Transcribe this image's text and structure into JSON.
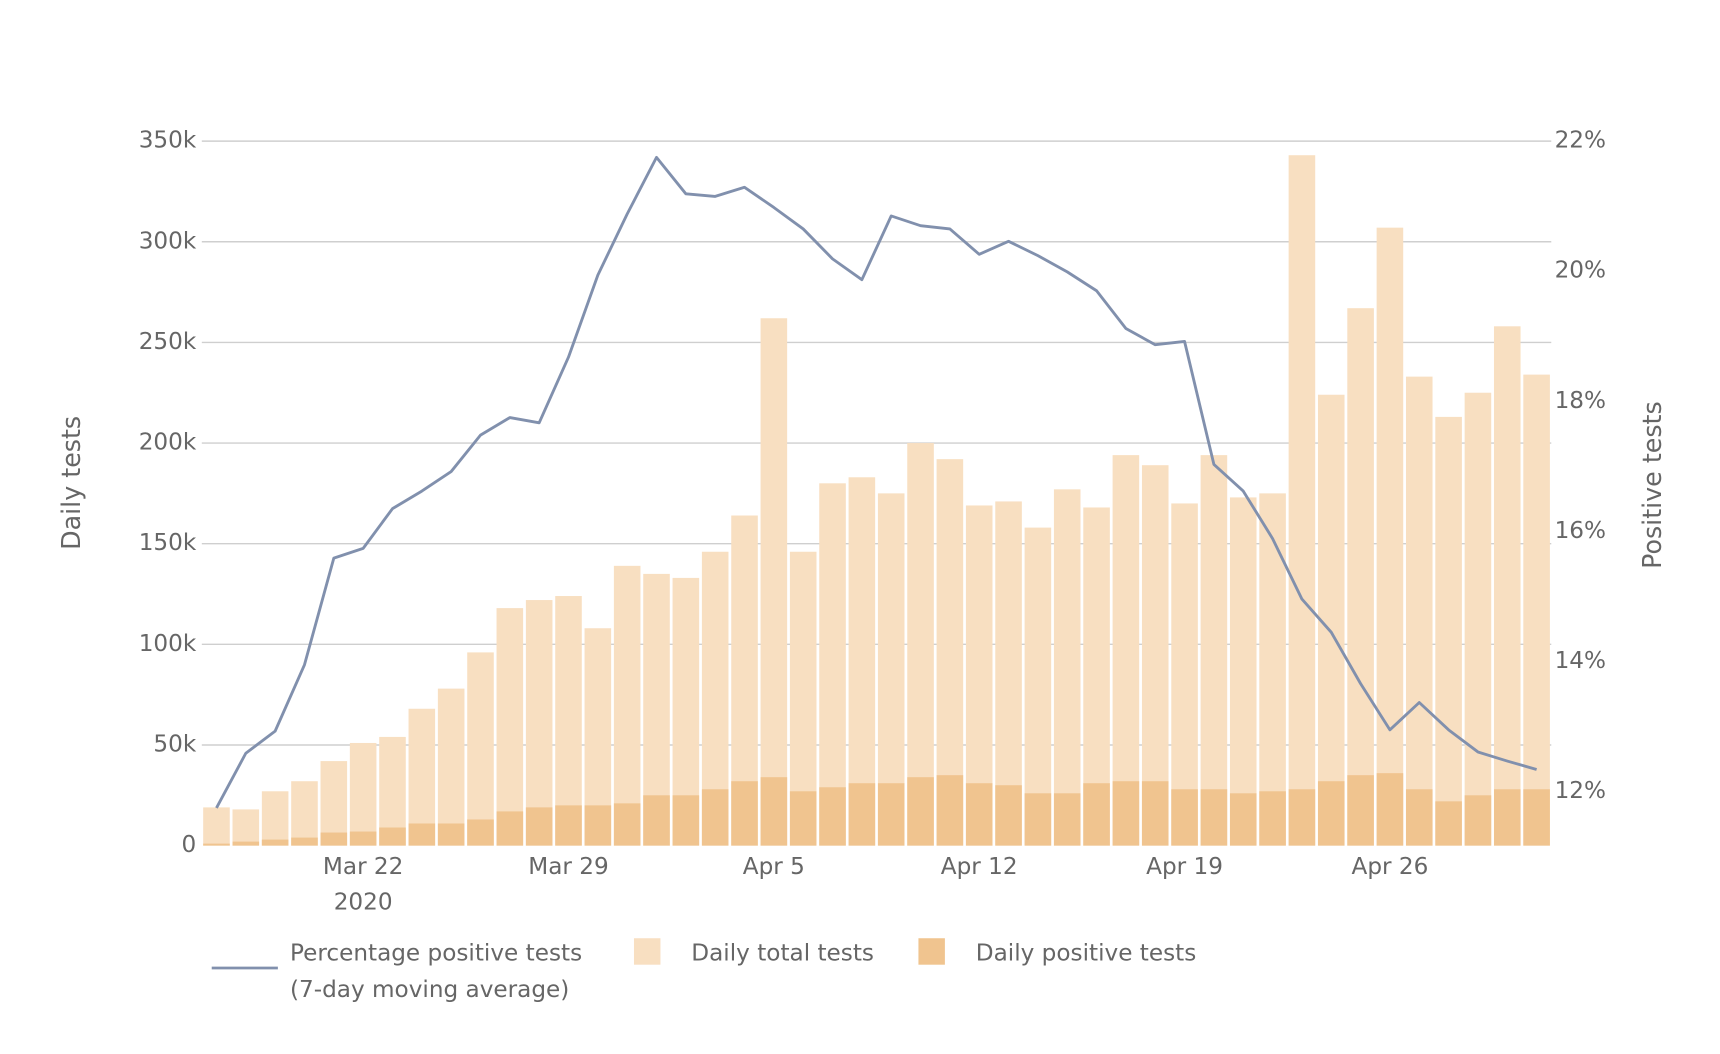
{
  "chart_data": {
    "type": "bar-line",
    "y_label": "Daily tests",
    "y2_label": "Positive tests",
    "x": [
      "2020-03-17",
      "2020-03-18",
      "2020-03-19",
      "2020-03-20",
      "2020-03-21",
      "2020-03-22",
      "2020-03-23",
      "2020-03-24",
      "2020-03-25",
      "2020-03-26",
      "2020-03-27",
      "2020-03-28",
      "2020-03-29",
      "2020-03-30",
      "2020-03-31",
      "2020-04-01",
      "2020-04-02",
      "2020-04-03",
      "2020-04-04",
      "2020-04-05",
      "2020-04-06",
      "2020-04-07",
      "2020-04-08",
      "2020-04-09",
      "2020-04-10",
      "2020-04-11",
      "2020-04-12",
      "2020-04-13",
      "2020-04-14",
      "2020-04-15",
      "2020-04-16",
      "2020-04-17",
      "2020-04-18",
      "2020-04-19",
      "2020-04-20",
      "2020-04-21",
      "2020-04-22",
      "2020-04-23",
      "2020-04-24",
      "2020-04-25",
      "2020-04-26",
      "2020-04-27",
      "2020-04-28",
      "2020-04-29",
      "2020-04-30",
      "2020-05-01"
    ],
    "xticks": [
      {
        "value": "2020-03-22",
        "label": "Mar 22"
      },
      {
        "value": "2020-03-29",
        "label": "Mar 29"
      },
      {
        "value": "2020-04-05",
        "label": "Apr 5"
      },
      {
        "value": "2020-04-12",
        "label": "Apr 12"
      },
      {
        "value": "2020-04-19",
        "label": "Apr 19"
      },
      {
        "value": "2020-04-26",
        "label": "Apr 26"
      }
    ],
    "x_year_label": "2020",
    "series": [
      {
        "name": "Percentage positive tests\n(7-day moving average)",
        "type": "line",
        "axis": "y2",
        "color": "#8190ad",
        "values": [
          11.75,
          12.59,
          12.93,
          13.95,
          15.59,
          15.74,
          16.35,
          16.62,
          16.92,
          17.48,
          17.75,
          17.67,
          18.68,
          19.94,
          20.88,
          21.75,
          21.19,
          21.15,
          21.29,
          20.98,
          20.65,
          20.19,
          19.87,
          20.85,
          20.7,
          20.65,
          20.26,
          20.46,
          20.24,
          19.99,
          19.7,
          19.12,
          18.87,
          18.92,
          17.03,
          16.62,
          15.89,
          14.96,
          14.45,
          13.66,
          12.95,
          13.37,
          12.95,
          12.61,
          12.47,
          12.34
        ]
      },
      {
        "name": "Daily total tests",
        "type": "bar",
        "color": "#f8dfc1",
        "values": [
          19000,
          18000,
          27000,
          32000,
          42000,
          51000,
          54000,
          68000,
          78000,
          96000,
          118000,
          122000,
          124000,
          108000,
          139000,
          135000,
          133000,
          146000,
          164000,
          262000,
          146000,
          180000,
          183000,
          175000,
          200000,
          192000,
          169000,
          171000,
          158000,
          177000,
          168000,
          194000,
          189000,
          170000,
          194000,
          173000,
          175000,
          343000,
          224000,
          267000,
          307000,
          233000,
          213000,
          225000,
          258000,
          234000
        ]
      },
      {
        "name": "Daily positive tests",
        "type": "bar",
        "color": "#f0c48f",
        "values": [
          1000,
          2000,
          3000,
          4000,
          6500,
          7000,
          9000,
          11000,
          11000,
          13000,
          17000,
          19000,
          20000,
          20000,
          21000,
          25000,
          25000,
          28000,
          32000,
          34000,
          27000,
          29000,
          31000,
          31000,
          34000,
          35000,
          31000,
          30000,
          26000,
          26000,
          31000,
          32000,
          32000,
          28000,
          28000,
          26000,
          27000,
          28000,
          32000,
          35000,
          36000,
          28000,
          22000,
          25000,
          28000,
          28000
        ]
      }
    ],
    "ylim": [
      0,
      350000
    ],
    "yticks": [
      0,
      {
        "value": 50000,
        "label": "50k"
      },
      {
        "value": 100000,
        "label": "100k"
      },
      {
        "value": 150000,
        "label": "150k"
      },
      {
        "value": 200000,
        "label": "200k"
      },
      {
        "value": 250000,
        "label": "250k"
      },
      {
        "value": 300000,
        "label": "300k"
      },
      {
        "value": 350000,
        "label": "350k"
      }
    ],
    "y2lim": [
      11.17,
      22
    ],
    "y2ticks": [
      {
        "value": 12,
        "label": "12%"
      },
      {
        "value": 14,
        "label": "14%"
      },
      {
        "value": 16,
        "label": "16%"
      },
      {
        "value": 18,
        "label": "18%"
      },
      {
        "value": 20,
        "label": "20%"
      },
      {
        "value": 22,
        "label": "22%"
      }
    ],
    "grid": true,
    "legend": "bottom"
  }
}
